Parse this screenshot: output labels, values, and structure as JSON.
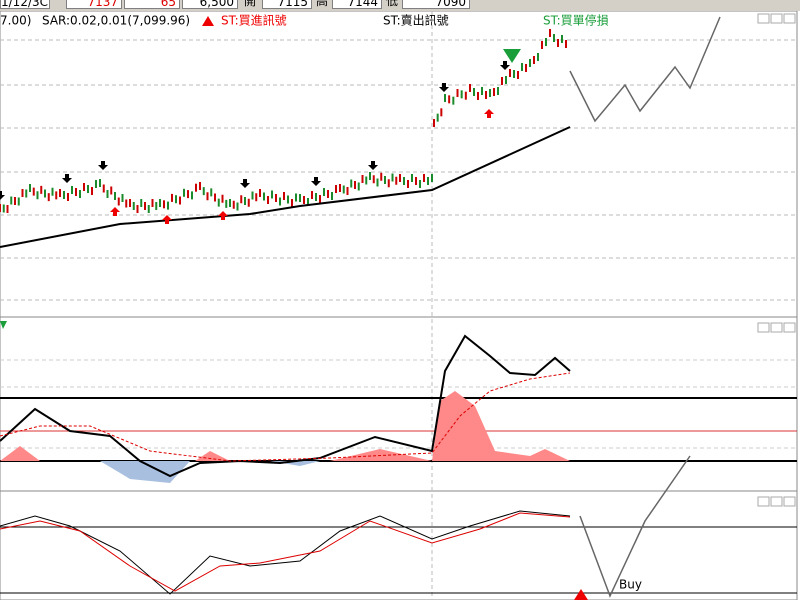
{
  "toolbar": {
    "date": "1/12/3C",
    "last": "7137",
    "change": "65",
    "volume": "6,500",
    "open_label": "開",
    "open": "7115",
    "high_label": "高",
    "high": "7144",
    "low_label": "低",
    "low": "7090"
  },
  "legend": {
    "prefix": "7.00)",
    "sar": "SAR:0.02,0.01(7,099.96)",
    "buy_signal": "ST:買進訊號",
    "sell_signal": "ST:賣出訊號",
    "buy_stop": "ST:買單停損"
  },
  "annotation": "Buy"
}
